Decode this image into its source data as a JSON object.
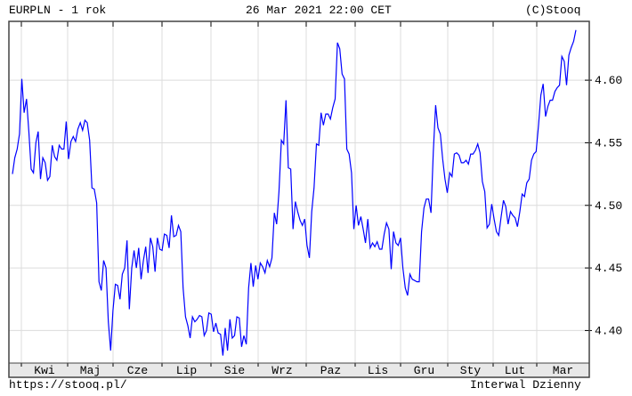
{
  "header": {
    "title": "EURPLN - 1 rok",
    "datetime": "26 Mar 2021 22:00 CET",
    "copyright": "(C)Stooq"
  },
  "footer": {
    "url": "https://stooq.pl/",
    "interval": "Interwal Dzienny"
  },
  "colors": {
    "line": "#0000ff",
    "grid": "#dcdcdc",
    "axis_band": "#e8e8e8",
    "frame": "#444444"
  },
  "chart_data": {
    "type": "line",
    "title": "EURPLN - 1 rok",
    "x_tick_labels": [
      "Kwi",
      "Maj",
      "Cze",
      "Lip",
      "Sie",
      "Wrz",
      "Paz",
      "Lis",
      "Gru",
      "Sty",
      "Lut",
      "Mar"
    ],
    "y_ticks": [
      4.4,
      4.45,
      4.5,
      4.55,
      4.6
    ],
    "y_tick_labels": [
      "4.40",
      "4.45",
      "4.50",
      "4.55",
      "4.60"
    ],
    "ylim": [
      4.374,
      4.647
    ],
    "grid": true,
    "y_axis_side": "right",
    "series": [
      {
        "values": [
          4.525,
          4.538,
          4.545,
          4.557,
          4.601,
          4.574,
          4.585,
          4.559,
          4.529,
          4.526,
          4.55,
          4.559,
          4.521,
          4.538,
          4.534,
          4.52,
          4.523,
          4.548,
          4.539,
          4.536,
          4.548,
          4.545,
          4.545,
          4.567,
          4.537,
          4.551,
          4.555,
          4.551,
          4.561,
          4.566,
          4.56,
          4.568,
          4.566,
          4.552,
          4.514,
          4.513,
          4.502,
          4.439,
          4.432,
          4.456,
          4.45,
          4.407,
          4.384,
          4.416,
          4.437,
          4.436,
          4.425,
          4.445,
          4.45,
          4.472,
          4.417,
          4.45,
          4.464,
          4.45,
          4.466,
          4.441,
          4.456,
          4.467,
          4.446,
          4.474,
          4.467,
          4.447,
          4.474,
          4.465,
          4.464,
          4.477,
          4.476,
          4.466,
          4.492,
          4.475,
          4.476,
          4.484,
          4.479,
          4.434,
          4.411,
          4.404,
          4.394,
          4.411,
          4.407,
          4.409,
          4.412,
          4.411,
          4.396,
          4.4,
          4.414,
          4.413,
          4.399,
          4.406,
          4.398,
          4.397,
          4.38,
          4.402,
          4.384,
          4.409,
          4.394,
          4.396,
          4.411,
          4.41,
          4.387,
          4.396,
          4.389,
          4.434,
          4.454,
          4.435,
          4.452,
          4.441,
          4.454,
          4.451,
          4.446,
          4.456,
          4.451,
          4.458,
          4.494,
          4.485,
          4.511,
          4.552,
          4.549,
          4.584,
          4.53,
          4.529,
          4.481,
          4.503,
          4.495,
          4.488,
          4.484,
          4.489,
          4.468,
          4.458,
          4.495,
          4.514,
          4.549,
          4.548,
          4.574,
          4.564,
          4.573,
          4.573,
          4.569,
          4.578,
          4.585,
          4.63,
          4.625,
          4.605,
          4.601,
          4.545,
          4.541,
          4.526,
          4.481,
          4.5,
          4.484,
          4.491,
          4.481,
          4.47,
          4.489,
          4.466,
          4.47,
          4.467,
          4.471,
          4.465,
          4.465,
          4.477,
          4.486,
          4.481,
          4.449,
          4.479,
          4.47,
          4.468,
          4.474,
          4.45,
          4.434,
          4.428,
          4.445,
          4.441,
          4.44,
          4.439,
          4.439,
          4.479,
          4.498,
          4.505,
          4.505,
          4.494,
          4.543,
          4.58,
          4.562,
          4.557,
          4.537,
          4.521,
          4.51,
          4.526,
          4.523,
          4.541,
          4.542,
          4.54,
          4.534,
          4.534,
          4.536,
          4.533,
          4.541,
          4.541,
          4.544,
          4.549,
          4.542,
          4.519,
          4.511,
          4.482,
          4.485,
          4.501,
          4.489,
          4.479,
          4.476,
          4.491,
          4.504,
          4.499,
          4.485,
          4.495,
          4.492,
          4.49,
          4.483,
          4.495,
          4.509,
          4.507,
          4.518,
          4.521,
          4.536,
          4.541,
          4.543,
          4.564,
          4.588,
          4.597,
          4.571,
          4.579,
          4.584,
          4.584,
          4.591,
          4.594,
          4.596,
          4.619,
          4.615,
          4.596,
          4.62,
          4.626,
          4.631,
          4.64
        ]
      }
    ]
  }
}
